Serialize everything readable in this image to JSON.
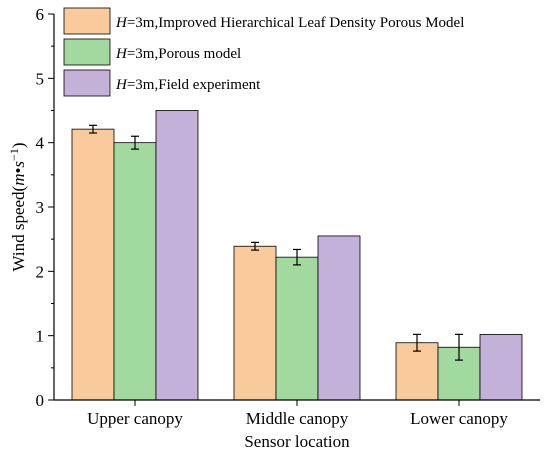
{
  "chart_data": {
    "type": "bar",
    "categories": [
      "Upper canopy",
      "Middle canopy",
      "Lower canopy"
    ],
    "series": [
      {
        "name_prefix": "H",
        "name": "=3m,Improved Hierarchical Leaf Density Porous Model",
        "color": "#f9cb9c",
        "values": [
          4.21,
          2.39,
          0.89
        ],
        "errors": [
          0.06,
          0.06,
          0.13
        ]
      },
      {
        "name_prefix": "H",
        "name": "=3m,Porous model",
        "color": "#a2d99e",
        "values": [
          4.0,
          2.22,
          0.82
        ],
        "errors": [
          0.1,
          0.12,
          0.2
        ]
      },
      {
        "name_prefix": "H",
        "name": "=3m,Field experiment",
        "color": "#c3b1d9",
        "values": [
          4.5,
          2.55,
          1.02
        ],
        "errors": [
          0,
          0,
          0
        ]
      }
    ],
    "xlabel": "Sensor location",
    "ylabel_main": "Wind speed(",
    "ylabel_unit_m": "m",
    "ylabel_unit_dot": "•",
    "ylabel_unit_s": "s",
    "ylabel_unit_exp": "−1",
    "ylabel_close": ")",
    "ylim": [
      0,
      6
    ],
    "yticks": [
      0,
      1,
      2,
      3,
      4,
      5,
      6
    ],
    "grid": false,
    "legend_position": "top-left"
  }
}
